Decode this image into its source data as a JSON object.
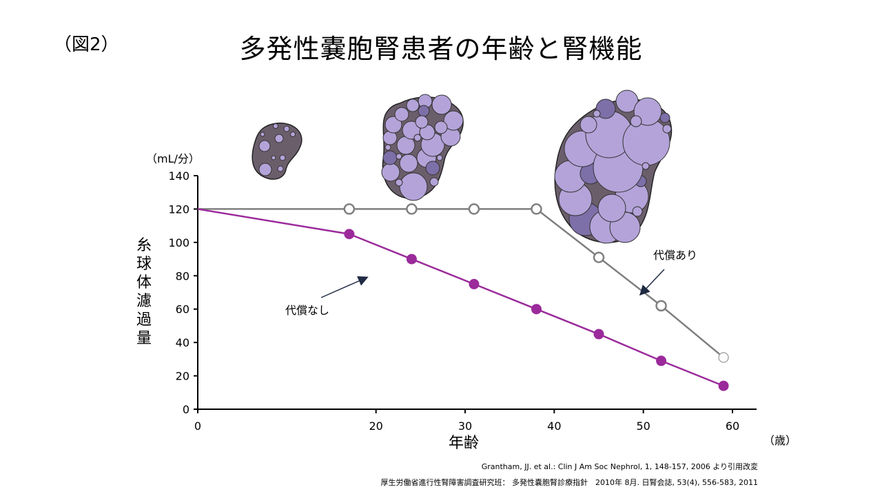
{
  "figure_label": "（図2）",
  "chart_data": {
    "type": "line",
    "title": "多発性嚢胞腎患者の年齢と腎機能",
    "xlabel": "年齢",
    "ylabel": "糸球体濾過量",
    "y_unit": "（mL/分）",
    "x_unit": "（歳）",
    "xlim": [
      0,
      62
    ],
    "ylim": [
      0,
      140
    ],
    "x_ticks": [
      0,
      20,
      30,
      40,
      50,
      60
    ],
    "y_ticks": [
      0,
      20,
      40,
      60,
      80,
      100,
      120,
      140
    ],
    "grid": false,
    "series": [
      {
        "name": "代償あり",
        "color": "#7f7f7f",
        "marker": "open-circle",
        "x": [
          0,
          17,
          24,
          31,
          38,
          45,
          52,
          59
        ],
        "y": [
          120,
          120,
          120,
          120,
          120,
          91,
          62,
          31
        ]
      },
      {
        "name": "代償なし",
        "color": "#9b2a9b",
        "marker": "filled-circle",
        "x": [
          0,
          17,
          24,
          31,
          38,
          45,
          52,
          59
        ],
        "y": [
          120,
          105,
          90,
          75,
          60,
          45,
          29,
          14
        ]
      }
    ],
    "annotations": [
      {
        "text": "代償あり",
        "series": "代償あり"
      },
      {
        "text": "代償なし",
        "series": "代償なし"
      }
    ]
  },
  "citations": [
    "Grantham, JJ. et al.: Clin J Am Soc Nephrol, 1, 148-157, 2006 より引用改変",
    "厚生労働省進行性腎障害調査研究班： 多発性嚢胞腎診療指針　2010年 8月. 日腎会誌, 53(4), 556-583, 2011"
  ],
  "colors": {
    "kidney_body": "#6b5e6b",
    "cyst_light": "#b3a3d9",
    "cyst_dark": "#7d6fa8"
  }
}
